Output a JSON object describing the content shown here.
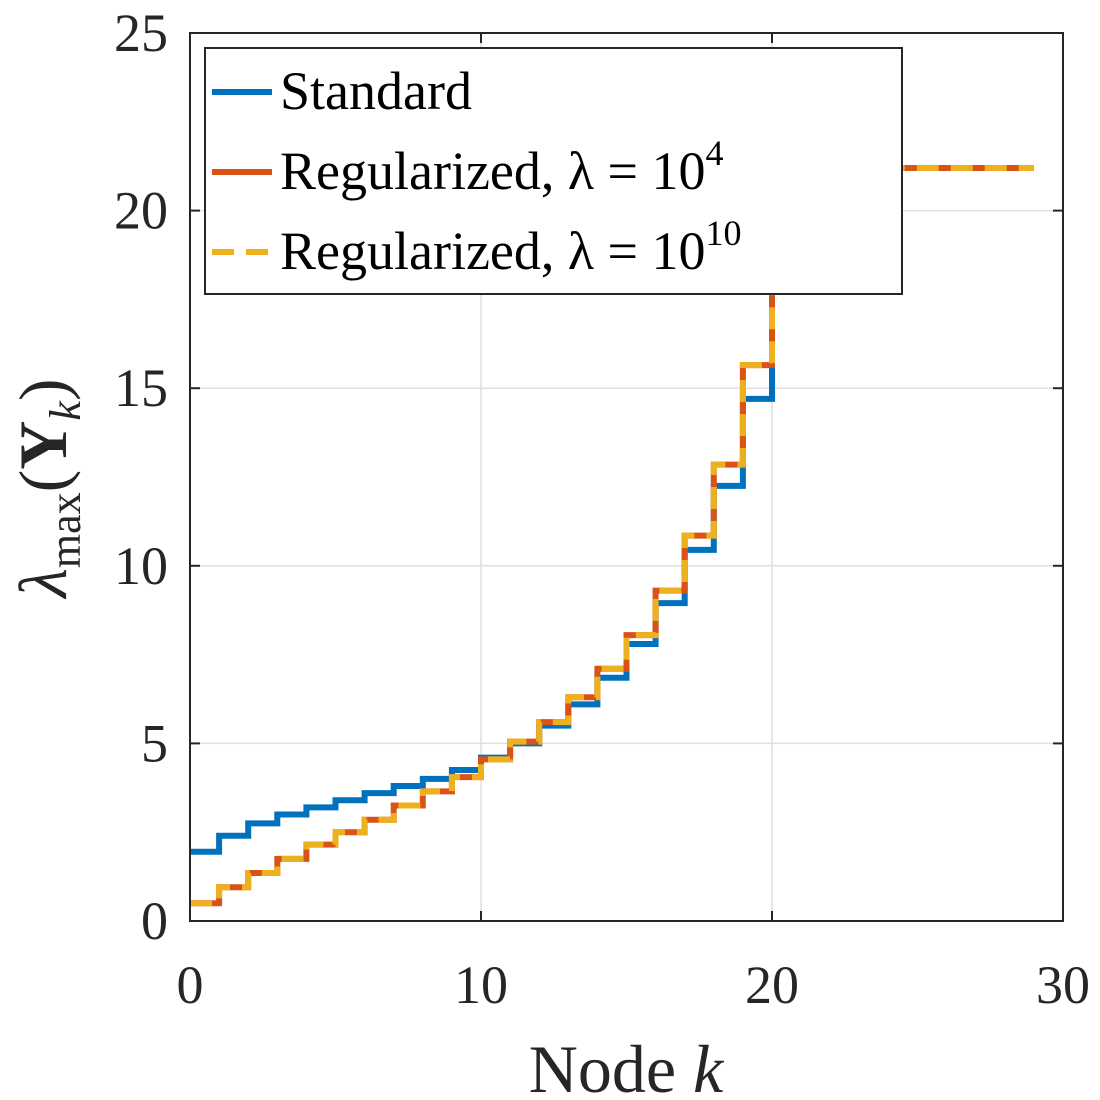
{
  "chart_data": {
    "type": "line",
    "step": true,
    "xlabel": "Node k",
    "ylabel": "λmax(Yk)",
    "xlim": [
      0,
      30
    ],
    "ylim": [
      0,
      25
    ],
    "xticks": [
      0,
      10,
      20,
      30
    ],
    "yticks": [
      0,
      5,
      10,
      15,
      20,
      25
    ],
    "xtick_labels": [
      "0",
      "10",
      "20",
      "30"
    ],
    "ytick_labels": [
      "0",
      "5",
      "10",
      "15",
      "20",
      "25"
    ],
    "grid": true,
    "legend_position": "top-left",
    "series": [
      {
        "name": "Standard",
        "color": "#0072BD",
        "style": "solid",
        "x": [
          0,
          1,
          2,
          3,
          4,
          5,
          6,
          7,
          8,
          9,
          10,
          11,
          12,
          13,
          14,
          15,
          16,
          17,
          18,
          19,
          20,
          29
        ],
        "y": [
          1.95,
          2.4,
          2.75,
          3.0,
          3.2,
          3.4,
          3.6,
          3.8,
          4.0,
          4.25,
          4.6,
          5.0,
          5.5,
          6.1,
          6.85,
          7.8,
          8.95,
          10.45,
          12.25,
          14.7,
          21.2,
          21.2
        ]
      },
      {
        "name": "Regularized, λ = 10^4",
        "color": "#D95319",
        "style": "solid",
        "x": [
          0,
          1,
          2,
          3,
          4,
          5,
          6,
          7,
          8,
          9,
          10,
          11,
          12,
          13,
          14,
          15,
          16,
          17,
          18,
          19,
          20,
          29
        ],
        "y": [
          0.5,
          0.95,
          1.35,
          1.75,
          2.15,
          2.5,
          2.85,
          3.25,
          3.65,
          4.05,
          4.55,
          5.05,
          5.6,
          6.3,
          7.1,
          8.05,
          9.3,
          10.85,
          12.85,
          15.65,
          21.2,
          21.2
        ]
      },
      {
        "name": "Regularized, λ = 10^10",
        "color": "#EDB120",
        "style": "dashed",
        "x": [
          0,
          1,
          2,
          3,
          4,
          5,
          6,
          7,
          8,
          9,
          10,
          11,
          12,
          13,
          14,
          15,
          16,
          17,
          18,
          19,
          20,
          29
        ],
        "y": [
          0.5,
          0.95,
          1.35,
          1.75,
          2.15,
          2.5,
          2.85,
          3.25,
          3.65,
          4.05,
          4.55,
          5.05,
          5.6,
          6.3,
          7.1,
          8.05,
          9.3,
          10.85,
          12.85,
          15.65,
          21.2,
          21.2
        ]
      }
    ],
    "legend": {
      "entries": [
        {
          "base": "Standard",
          "sup": ""
        },
        {
          "base": "Regularized, λ = 10",
          "sup": "4"
        },
        {
          "base": "Regularized, λ = 10",
          "sup": "10"
        }
      ]
    },
    "ylabel_parts": {
      "main": "λ",
      "sub": "max",
      "paren_open": "(",
      "var": "Y",
      "var_sub": "k",
      "paren_close": ")"
    },
    "xlabel_parts": {
      "main": "Node ",
      "var": "k"
    }
  }
}
